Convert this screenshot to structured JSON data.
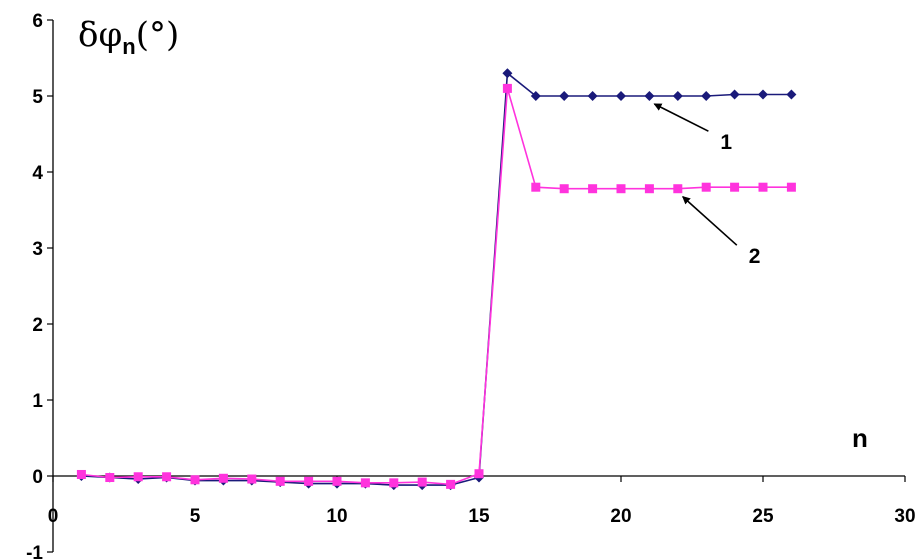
{
  "chart_data": {
    "type": "line",
    "ylabel": {
      "main": "δφ",
      "sub": "n",
      "unit": "(°)"
    },
    "xlabel": "n",
    "xlim": [
      0,
      30
    ],
    "ylim": [
      -1,
      6
    ],
    "xticks": [
      "0",
      "5",
      "10",
      "15",
      "20",
      "25",
      "30"
    ],
    "yticks": [
      "-1",
      "0",
      "1",
      "2",
      "3",
      "4",
      "5",
      "6"
    ],
    "grid": false,
    "series": [
      {
        "name": "1",
        "color": "#1a1a7a",
        "marker": "diamond",
        "x": [
          1,
          2,
          3,
          4,
          5,
          6,
          7,
          8,
          9,
          10,
          11,
          12,
          13,
          14,
          15,
          16,
          17,
          18,
          19,
          20,
          21,
          22,
          23,
          24,
          25,
          26
        ],
        "y": [
          0.0,
          -0.02,
          -0.04,
          -0.02,
          -0.06,
          -0.06,
          -0.06,
          -0.08,
          -0.1,
          -0.1,
          -0.1,
          -0.12,
          -0.12,
          -0.12,
          -0.02,
          5.3,
          5.0,
          5.0,
          5.0,
          5.0,
          5.0,
          5.0,
          5.0,
          5.02,
          5.02,
          5.02
        ]
      },
      {
        "name": "2",
        "color": "#ff33dd",
        "marker": "square",
        "x": [
          1,
          2,
          3,
          4,
          5,
          6,
          7,
          8,
          9,
          10,
          11,
          12,
          13,
          14,
          15,
          16,
          17,
          18,
          19,
          20,
          21,
          22,
          23,
          24,
          25,
          26
        ],
        "y": [
          0.02,
          -0.02,
          -0.01,
          -0.01,
          -0.05,
          -0.03,
          -0.04,
          -0.07,
          -0.07,
          -0.07,
          -0.09,
          -0.09,
          -0.08,
          -0.11,
          0.03,
          5.1,
          3.8,
          3.78,
          3.78,
          3.78,
          3.78,
          3.78,
          3.8,
          3.8,
          3.8,
          3.8
        ]
      }
    ],
    "annotations": [
      {
        "label": "1",
        "point": [
          21,
          5.0
        ],
        "text_at": [
          23.5,
          4.3
        ]
      },
      {
        "label": "2",
        "point": [
          22,
          3.78
        ],
        "text_at": [
          24.5,
          2.8
        ]
      }
    ]
  }
}
